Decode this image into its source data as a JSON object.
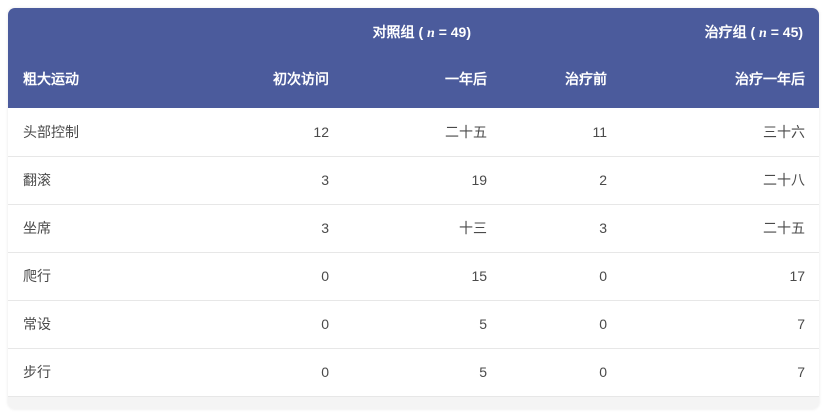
{
  "table": {
    "header": {
      "corner_label": "粗大运动",
      "groups": [
        {
          "prefix": "对照组 ( ",
          "n": "n",
          "suffix": " = 49)"
        },
        {
          "prefix": "治疗组 ( ",
          "n": "n",
          "suffix": " = 45)"
        }
      ],
      "columns": [
        "初次访问",
        "一年后",
        "治疗前",
        "治疗一年后"
      ]
    },
    "rows": [
      {
        "label": "头部控制",
        "values": [
          "12",
          "二十五",
          "11",
          "三十六"
        ]
      },
      {
        "label": "翻滚",
        "values": [
          "3",
          "19",
          "2",
          "二十八"
        ]
      },
      {
        "label": "坐席",
        "values": [
          "3",
          "十三",
          "3",
          "二十五"
        ]
      },
      {
        "label": "爬行",
        "values": [
          "0",
          "15",
          "0",
          "17"
        ]
      },
      {
        "label": "常设",
        "values": [
          "0",
          "5",
          "0",
          "7"
        ]
      },
      {
        "label": "步行",
        "values": [
          "0",
          "5",
          "0",
          "7"
        ]
      }
    ]
  },
  "colors": {
    "header_bg": "#4b5b9c",
    "header_text": "#ffffff",
    "row_bg": "#ffffff",
    "body_text": "#4a4a4a",
    "separator": "#e7e7e7",
    "footer_bg": "#f4f4f4",
    "page_bg": "#ffffff"
  },
  "chart_data": {
    "type": "table",
    "title": "",
    "row_header": "粗大运动",
    "column_groups": [
      {
        "label": "对照组 (n = 49)",
        "columns": [
          "初次访问",
          "一年后"
        ]
      },
      {
        "label": "治疗组 (n = 45)",
        "columns": [
          "治疗前",
          "治疗一年后"
        ]
      }
    ],
    "columns": [
      "粗大运动",
      "初次访问",
      "一年后",
      "治疗前",
      "治疗一年后"
    ],
    "rows": [
      [
        "头部控制",
        "12",
        "二十五",
        "11",
        "三十六"
      ],
      [
        "翻滚",
        "3",
        "19",
        "2",
        "二十八"
      ],
      [
        "坐席",
        "3",
        "十三",
        "3",
        "二十五"
      ],
      [
        "爬行",
        "0",
        "15",
        "0",
        "17"
      ],
      [
        "常设",
        "0",
        "5",
        "0",
        "7"
      ],
      [
        "步行",
        "0",
        "5",
        "0",
        "7"
      ]
    ],
    "layout": {
      "header_color": "#4b5b9c",
      "grid": "horizontal-separators",
      "value_alignment": "right"
    }
  }
}
